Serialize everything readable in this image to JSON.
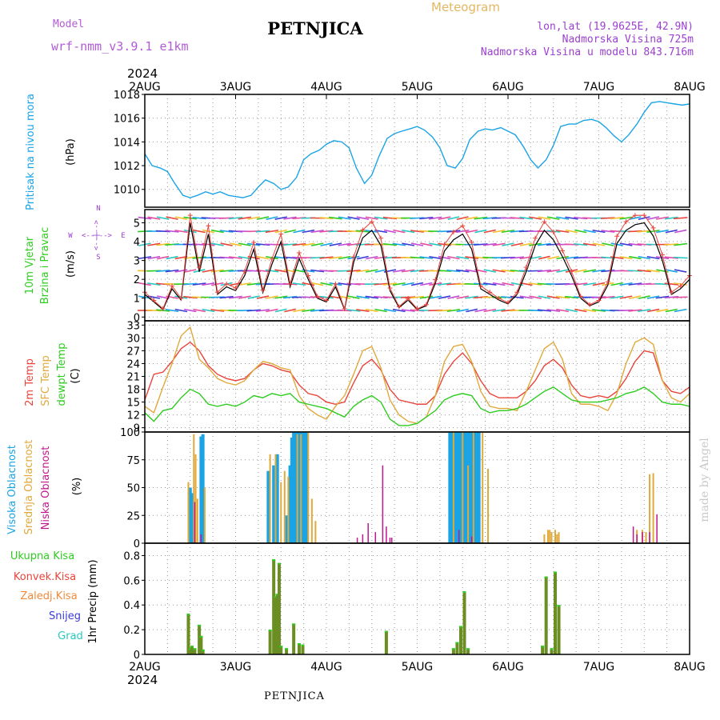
{
  "header": {
    "model_label": "Model",
    "model_name": "wrf-nmm_v3.9.1  e1km",
    "station": "PETNJICA",
    "title": "Meteogram",
    "lonlat": "lon,lat (19.9625E, 42.9N)",
    "elevation": "Nadmorska Visina 725m",
    "model_elevation": "Nadmorska Visina u modelu 843.716m",
    "year_top": "2024",
    "year_bottom": "2024",
    "footer_station": "PETNJICA",
    "watermark": "made by Angel",
    "colors": {
      "model": "#b25bd6",
      "title": "#e5b760",
      "info": "#9b3fcf"
    }
  },
  "dates": [
    "2AUG",
    "3AUG",
    "4AUG",
    "5AUG",
    "6AUG",
    "7AUG",
    "8AUG"
  ],
  "panels": {
    "pressure": {
      "label_main": "Pritisak na nivou mora",
      "unit": "(hPa)",
      "color": "#1aa4e6",
      "yticks": [
        "1010",
        "1012",
        "1014",
        "1016",
        "1018"
      ]
    },
    "wind": {
      "label_line1": "10m Vjetar",
      "label_line2": "Brzina i Pravac",
      "unit": "(m/s)",
      "compass_w": "W",
      "compass_e": "E",
      "compass_n": "N",
      "compass_s": "S",
      "compass_arrows": "<--|-->",
      "yticks": [
        "0",
        "1",
        "2",
        "3",
        "4",
        "5"
      ]
    },
    "temperature": {
      "label_2m": "2m Temp",
      "label_sfc": "SFC Temp",
      "label_dewpt": "dewpt Temp",
      "unit": "(C)",
      "colors": {
        "t2m": "#e8453c",
        "sfc": "#e0a93c",
        "dewpt": "#2ecc1f"
      },
      "yticks": [
        "9",
        "12",
        "15",
        "18",
        "21",
        "24",
        "27",
        "30",
        "33"
      ]
    },
    "clouds": {
      "label_high": "Visoka Oblacnost",
      "label_mid": "Srednja Oblacnost",
      "label_low": "Niska Oblacnost",
      "unit": "(%)",
      "colors": {
        "high": "#1aa4e6",
        "mid": "#e0a93c",
        "low": "#c2178c"
      },
      "yticks": [
        "0",
        "25",
        "50",
        "75",
        "100"
      ]
    },
    "precip": {
      "label_total": "Ukupna Kisa",
      "label_conv": "Konvek.Kisa",
      "label_frozen": "Zaledj.Kisa",
      "label_snow": "Snijeg",
      "label_hail": "Grad",
      "unit": "1hr Precip (mm)",
      "colors": {
        "total": "#2ecc1f",
        "conv": "#e8453c",
        "frozen": "#f08a3a",
        "snow": "#3b3bd6",
        "hail": "#28c8c0",
        "bar": "#6b8e23"
      },
      "yticks": [
        "0",
        "0.2",
        "0.4",
        "0.6",
        "0.8"
      ]
    }
  },
  "chart_data": [
    {
      "type": "line",
      "title": "Pritisak na nivou mora",
      "ylabel": "(hPa)",
      "ylim": [
        1008.5,
        1018
      ],
      "grid": true,
      "x_day_offsets": [
        0,
        0.08,
        0.17,
        0.25,
        0.33,
        0.42,
        0.5,
        0.58,
        0.67,
        0.75,
        0.83,
        0.92,
        1.0,
        1.08,
        1.17,
        1.25,
        1.33,
        1.42,
        1.5,
        1.58,
        1.67,
        1.75,
        1.83,
        1.92,
        2.0,
        2.08,
        2.17,
        2.25,
        2.33,
        2.42,
        2.5,
        2.58,
        2.67,
        2.75,
        2.83,
        2.92,
        3.0,
        3.08,
        3.17,
        3.25,
        3.33,
        3.42,
        3.5,
        3.58,
        3.67,
        3.75,
        3.83,
        3.92,
        4.0,
        4.08,
        4.17,
        4.25,
        4.33,
        4.42,
        4.5,
        4.58,
        4.67,
        4.75,
        4.83,
        4.92,
        5.0,
        5.08,
        5.17,
        5.25,
        5.33,
        5.42,
        5.5,
        5.58,
        5.67,
        5.75,
        5.83,
        5.92,
        6.0
      ],
      "series": [
        {
          "name": "Pritisak na nivou mora",
          "values": [
            1013,
            1012,
            1011.8,
            1011.5,
            1010.5,
            1009.5,
            1009.3,
            1009.5,
            1009.8,
            1009.6,
            1009.8,
            1009.5,
            1009.4,
            1009.3,
            1009.5,
            1010.2,
            1010.8,
            1010.5,
            1010,
            1010.2,
            1011,
            1012.5,
            1013,
            1013.3,
            1013.8,
            1014.1,
            1014,
            1013.5,
            1011.8,
            1010.5,
            1011.2,
            1012.8,
            1014.3,
            1014.7,
            1014.9,
            1015.1,
            1015.3,
            1015.0,
            1014.4,
            1013.5,
            1012,
            1011.8,
            1012.6,
            1014.2,
            1014.9,
            1015.1,
            1015.0,
            1015.2,
            1014.9,
            1014.6,
            1013.6,
            1012.5,
            1011.8,
            1012.5,
            1013.7,
            1015.3,
            1015.5,
            1015.5,
            1015.8,
            1015.9,
            1015.7,
            1015.2,
            1014.5,
            1014,
            1014.6,
            1015.5,
            1016.5,
            1017.3,
            1017.4,
            1017.3,
            1017.2,
            1017.1,
            1017.2
          ]
        }
      ]
    },
    {
      "type": "line",
      "title": "10m Vjetar Brzina i Pravac",
      "ylabel": "(m/s)",
      "ylim": [
        -0.2,
        5.7
      ],
      "grid": true,
      "x_day_offsets": [
        0,
        0.1,
        0.2,
        0.3,
        0.4,
        0.5,
        0.6,
        0.7,
        0.8,
        0.9,
        1.0,
        1.1,
        1.2,
        1.3,
        1.4,
        1.5,
        1.6,
        1.7,
        1.8,
        1.9,
        2.0,
        2.1,
        2.2,
        2.3,
        2.4,
        2.5,
        2.6,
        2.7,
        2.8,
        2.9,
        3.0,
        3.1,
        3.2,
        3.3,
        3.4,
        3.5,
        3.6,
        3.7,
        3.8,
        3.9,
        4.0,
        4.1,
        4.2,
        4.3,
        4.4,
        4.5,
        4.6,
        4.7,
        4.8,
        4.9,
        5.0,
        5.1,
        5.2,
        5.3,
        5.4,
        5.5,
        5.6,
        5.7,
        5.8,
        5.9,
        6.0
      ],
      "series": [
        {
          "name": "10m Vjetar",
          "values": [
            1.2,
            0.8,
            0.4,
            1.5,
            0.9,
            5.0,
            2.4,
            4.4,
            1.2,
            1.6,
            1.4,
            2.2,
            3.6,
            1.3,
            2.8,
            4.0,
            1.6,
            3.1,
            2.0,
            1.0,
            0.8,
            1.6,
            0.4,
            2.9,
            4.2,
            4.6,
            3.8,
            1.4,
            0.5,
            0.9,
            0.4,
            0.6,
            1.8,
            3.5,
            4.1,
            4.4,
            3.6,
            1.5,
            1.2,
            0.9,
            0.7,
            1.2,
            2.4,
            3.8,
            4.6,
            4.1,
            3.2,
            2.2,
            1.0,
            0.6,
            0.8,
            1.7,
            3.9,
            4.6,
            4.9,
            5.0,
            4.3,
            3.0,
            1.2,
            1.5,
            2.0
          ]
        }
      ]
    },
    {
      "type": "line",
      "title": "Temperature",
      "ylabel": "(C)",
      "ylim": [
        8,
        34
      ],
      "grid": true,
      "x_day_offsets": [
        0,
        0.1,
        0.2,
        0.3,
        0.4,
        0.5,
        0.6,
        0.7,
        0.8,
        0.9,
        1.0,
        1.1,
        1.2,
        1.3,
        1.4,
        1.5,
        1.6,
        1.7,
        1.8,
        1.9,
        2.0,
        2.1,
        2.2,
        2.3,
        2.4,
        2.5,
        2.6,
        2.7,
        2.8,
        2.9,
        3.0,
        3.1,
        3.2,
        3.3,
        3.4,
        3.5,
        3.6,
        3.7,
        3.8,
        3.9,
        4.0,
        4.1,
        4.2,
        4.3,
        4.4,
        4.5,
        4.6,
        4.7,
        4.8,
        4.9,
        5.0,
        5.1,
        5.2,
        5.3,
        5.4,
        5.5,
        5.6,
        5.7,
        5.8,
        5.9,
        6.0
      ],
      "series": [
        {
          "name": "2m Temp",
          "values": [
            15.5,
            21.5,
            22.0,
            24.5,
            27.5,
            29.0,
            27.0,
            23.5,
            21.5,
            20.5,
            20.0,
            20.5,
            22.5,
            24.0,
            23.5,
            22.5,
            22.0,
            19.0,
            17.0,
            16.5,
            15.0,
            14.5,
            15.0,
            19.5,
            23.5,
            25.0,
            22.5,
            18.0,
            15.5,
            15.0,
            14.5,
            14.5,
            16.5,
            21.5,
            24.5,
            26.5,
            24.0,
            20.0,
            17.0,
            16.0,
            16.0,
            16.0,
            17.5,
            20.0,
            23.5,
            25.0,
            23.0,
            19.0,
            16.5,
            16.0,
            16.5,
            16.0,
            17.5,
            20.5,
            24.5,
            27.0,
            26.5,
            20.0,
            17.5,
            17.0,
            18.5
          ]
        },
        {
          "name": "SFC Temp",
          "values": [
            14.0,
            12.5,
            18.5,
            24.0,
            30.5,
            32.5,
            25.0,
            23.0,
            20.5,
            19.5,
            19.0,
            20.0,
            22.5,
            24.5,
            24.0,
            23.0,
            22.5,
            16.5,
            13.5,
            12.0,
            11.0,
            14.0,
            16.5,
            21.5,
            27.0,
            28.0,
            23.0,
            15.5,
            12.0,
            10.5,
            10.0,
            11.5,
            16.5,
            24.5,
            28.0,
            28.5,
            24.5,
            17.5,
            14.0,
            13.5,
            13.5,
            13.0,
            17.5,
            22.5,
            27.5,
            29.0,
            25.0,
            17.0,
            14.5,
            14.5,
            14.0,
            13.0,
            17.0,
            24.0,
            29.0,
            30.0,
            28.5,
            20.0,
            16.0,
            15.0,
            17.0
          ]
        },
        {
          "name": "dewpt Temp",
          "values": [
            12.5,
            10.5,
            13.0,
            13.5,
            16.0,
            18.0,
            17.0,
            14.5,
            14.0,
            14.5,
            14.0,
            15.0,
            16.5,
            16.0,
            17.0,
            16.5,
            17.0,
            15.0,
            14.5,
            14.0,
            13.5,
            12.5,
            11.5,
            14.0,
            15.5,
            16.5,
            15.0,
            11.0,
            9.5,
            9.5,
            10.0,
            11.5,
            13.0,
            15.5,
            16.5,
            17.0,
            16.5,
            13.5,
            12.5,
            13.0,
            13.0,
            13.5,
            14.5,
            16.0,
            17.5,
            18.5,
            17.0,
            15.5,
            15.0,
            15.0,
            15.0,
            15.5,
            16.0,
            17.0,
            17.5,
            18.5,
            17.0,
            15.0,
            14.5,
            14.5,
            14.0
          ]
        }
      ]
    },
    {
      "type": "bar",
      "title": "Oblacnost",
      "ylabel": "(%)",
      "ylim": [
        0,
        100
      ],
      "grid": true,
      "series": [
        {
          "name": "Visoka Oblacnost",
          "day_offsets": [
            0.5,
            0.52,
            0.62,
            0.64,
            1.36,
            1.42,
            1.46,
            1.56,
            1.6,
            1.62,
            1.64,
            1.66,
            1.68,
            1.7,
            1.72,
            1.74,
            1.76,
            1.78,
            3.36,
            3.38,
            3.4,
            3.42,
            3.44,
            3.46,
            3.48,
            3.5,
            3.52,
            3.54,
            3.56,
            3.58,
            3.6,
            3.62,
            3.64,
            3.66,
            3.68
          ],
          "values": [
            50,
            45,
            96,
            98,
            65,
            70,
            80,
            25,
            70,
            95,
            100,
            100,
            100,
            100,
            100,
            100,
            100,
            100,
            100,
            100,
            100,
            100,
            100,
            100,
            100,
            100,
            100,
            100,
            100,
            100,
            100,
            100,
            100,
            100,
            100
          ]
        },
        {
          "name": "Srednja Oblacnost",
          "day_offsets": [
            0.48,
            0.54,
            0.56,
            0.58,
            0.66,
            1.38,
            1.44,
            1.5,
            1.54,
            1.58,
            1.68,
            1.72,
            1.8,
            1.84,
            1.88,
            3.4,
            3.5,
            3.56,
            3.62,
            3.72,
            3.78,
            4.4,
            4.44,
            4.46,
            4.48,
            4.52,
            4.54,
            4.56,
            5.42,
            5.48,
            5.52,
            5.56,
            5.6
          ],
          "values": [
            55,
            98,
            80,
            40,
            50,
            80,
            80,
            55,
            65,
            60,
            98,
            98,
            100,
            40,
            20,
            100,
            100,
            70,
            100,
            100,
            67,
            8,
            12,
            12,
            10,
            12,
            8,
            10,
            12,
            12,
            10,
            62,
            63
          ]
        },
        {
          "name": "Niska Oblacnost",
          "day_offsets": [
            0.55,
            0.62,
            2.34,
            2.4,
            2.46,
            2.54,
            2.62,
            2.66,
            2.7,
            2.72,
            3.46,
            3.6,
            5.38,
            5.42,
            5.48,
            5.56,
            5.64
          ],
          "values": [
            37,
            8,
            5,
            8,
            18,
            10,
            70,
            15,
            5,
            5,
            12,
            6,
            15,
            8,
            10,
            10,
            26
          ]
        }
      ]
    },
    {
      "type": "bar",
      "title": "1hr Precip",
      "ylabel": "1hr Precip (mm)",
      "ylim": [
        0,
        0.9
      ],
      "grid": true,
      "series": [
        {
          "name": "Ukupna Kisa",
          "day_offsets": [
            0.48,
            0.5,
            0.52,
            0.55,
            0.6,
            0.62,
            0.64,
            1.38,
            1.42,
            1.44,
            1.46,
            1.48,
            1.5,
            1.56,
            1.64,
            1.7,
            1.74,
            2.66,
            3.4,
            3.44,
            3.48,
            3.52,
            3.56,
            4.38,
            4.42,
            4.48,
            4.52,
            4.56
          ],
          "values": [
            0.33,
            0.05,
            0.07,
            0.05,
            0.24,
            0.15,
            0.04,
            0.2,
            0.77,
            0.47,
            0.49,
            0.74,
            0.07,
            0.05,
            0.25,
            0.09,
            0.08,
            0.19,
            0.05,
            0.1,
            0.23,
            0.51,
            0.05,
            0.07,
            0.63,
            0.05,
            0.67,
            0.4
          ]
        }
      ]
    }
  ]
}
